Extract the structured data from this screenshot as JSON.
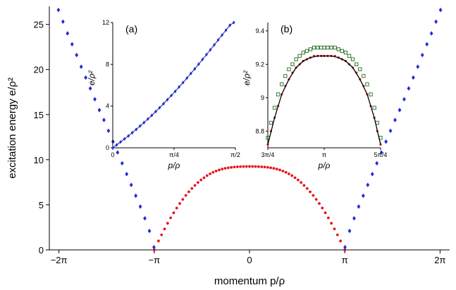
{
  "chart_data": [
    {
      "id": "main",
      "type": "scatter",
      "xlabel": "momentum p/ρ",
      "ylabel": "excitation energy e/ρ²",
      "xlim": [
        -6.6,
        6.6
      ],
      "ylim": [
        0,
        27
      ],
      "xticks": [
        {
          "value": -6.2832,
          "label": "−2π"
        },
        {
          "value": -3.1416,
          "label": "−π"
        },
        {
          "value": 0,
          "label": "0"
        },
        {
          "value": 3.1416,
          "label": "π"
        },
        {
          "value": 6.2832,
          "label": "2π"
        }
      ],
      "yticks": [
        {
          "value": 0,
          "label": "0"
        },
        {
          "value": 5,
          "label": "5"
        },
        {
          "value": 10,
          "label": "10"
        },
        {
          "value": 15,
          "label": "15"
        },
        {
          "value": 20,
          "label": "20"
        },
        {
          "value": 25,
          "label": "25"
        }
      ],
      "grid": false,
      "series": [
        {
          "marker": "diamond",
          "color": "#1f2bd9",
          "description": "outer branches |p| from π to 2π",
          "x": [
            -6.3,
            -6.15,
            -6.0,
            -5.85,
            -5.7,
            -5.55,
            -5.4,
            -5.25,
            -5.1,
            -4.95,
            -4.8,
            -4.65,
            -4.5,
            -4.35,
            -4.2,
            -4.05,
            -3.9,
            -3.75,
            -3.6,
            -3.45,
            -3.3,
            -3.15,
            3.15,
            3.3,
            3.45,
            3.6,
            3.75,
            3.9,
            4.05,
            4.2,
            4.35,
            4.5,
            4.65,
            4.8,
            4.95,
            5.1,
            5.25,
            5.4,
            5.55,
            5.7,
            5.85,
            6.0,
            6.15,
            6.3
          ],
          "y": [
            26.6,
            25.3,
            24.0,
            22.8,
            21.6,
            20.3,
            19.1,
            17.9,
            16.7,
            15.5,
            14.4,
            13.2,
            12.0,
            10.8,
            9.6,
            8.4,
            7.2,
            6.0,
            4.8,
            3.5,
            2.1,
            0.3,
            0.3,
            2.1,
            3.5,
            4.8,
            6.0,
            7.2,
            8.4,
            9.6,
            10.8,
            12.0,
            13.2,
            14.4,
            15.5,
            16.7,
            17.9,
            19.1,
            20.3,
            21.6,
            22.8,
            24.0,
            25.3,
            26.6
          ]
        },
        {
          "marker": "circle",
          "color": "#e8131b",
          "description": "inner branch |p| < π",
          "x": [
            -3.14,
            -3.0,
            -2.9,
            -2.8,
            -2.7,
            -2.6,
            -2.5,
            -2.4,
            -2.3,
            -2.2,
            -2.1,
            -2.0,
            -1.9,
            -1.8,
            -1.7,
            -1.6,
            -1.5,
            -1.4,
            -1.3,
            -1.2,
            -1.1,
            -1.0,
            -0.9,
            -0.8,
            -0.7,
            -0.6,
            -0.5,
            -0.4,
            -0.3,
            -0.2,
            -0.1,
            0.0,
            0.1,
            0.2,
            0.3,
            0.4,
            0.5,
            0.6,
            0.7,
            0.8,
            0.9,
            1.0,
            1.1,
            1.2,
            1.3,
            1.4,
            1.5,
            1.6,
            1.7,
            1.8,
            1.9,
            2.0,
            2.1,
            2.2,
            2.3,
            2.4,
            2.5,
            2.6,
            2.7,
            2.8,
            2.9,
            3.0,
            3.14
          ],
          "y": [
            0.0,
            0.99,
            1.67,
            2.32,
            2.95,
            3.55,
            4.11,
            4.64,
            5.14,
            5.6,
            6.04,
            6.44,
            6.81,
            7.15,
            7.47,
            7.75,
            8.0,
            8.23,
            8.43,
            8.6,
            8.74,
            8.86,
            8.96,
            9.04,
            9.1,
            9.15,
            9.19,
            9.21,
            9.23,
            9.24,
            9.25,
            9.25,
            9.25,
            9.24,
            9.23,
            9.21,
            9.19,
            9.15,
            9.1,
            9.04,
            8.96,
            8.86,
            8.74,
            8.6,
            8.43,
            8.23,
            8.0,
            7.75,
            7.47,
            7.15,
            6.81,
            6.44,
            6.04,
            5.6,
            5.14,
            4.64,
            4.11,
            3.55,
            2.95,
            2.32,
            1.67,
            0.99,
            0.0
          ]
        },
        {
          "marker": "diamond",
          "color": "#b01050",
          "description": "touch points at p = ±π",
          "x": [
            -3.1416,
            3.1416
          ],
          "y": [
            0,
            0
          ]
        }
      ],
      "annotations": []
    },
    {
      "id": "inset-a",
      "panel_label": "(a)",
      "type": "scatter",
      "xlabel": "p/ρ",
      "ylabel": "e/ρ²",
      "xlim": [
        0,
        1.5708
      ],
      "ylim": [
        0,
        12
      ],
      "xticks": [
        {
          "value": 0,
          "label": "0"
        },
        {
          "value": 0.7854,
          "label": "π/4"
        },
        {
          "value": 1.5708,
          "label": "π/2"
        }
      ],
      "yticks": [
        {
          "value": 0,
          "label": "0"
        },
        {
          "value": 4,
          "label": "4"
        },
        {
          "value": 8,
          "label": "8"
        },
        {
          "value": 12,
          "label": "12"
        }
      ],
      "series": [
        {
          "marker": "diamond",
          "color": "#1f2bd9",
          "line_color": "#1a1a8c",
          "x": [
            0.0,
            0.05,
            0.1,
            0.15,
            0.2,
            0.25,
            0.3,
            0.35,
            0.4,
            0.45,
            0.5,
            0.55,
            0.6,
            0.65,
            0.7,
            0.75,
            0.8,
            0.85,
            0.9,
            0.95,
            1.0,
            1.05,
            1.1,
            1.15,
            1.2,
            1.25,
            1.3,
            1.35,
            1.4,
            1.45,
            1.5,
            1.55
          ],
          "y": [
            0.0,
            0.28,
            0.56,
            0.85,
            1.14,
            1.45,
            1.76,
            2.09,
            2.42,
            2.76,
            3.11,
            3.47,
            3.84,
            4.22,
            4.61,
            5.01,
            5.41,
            5.83,
            6.25,
            6.68,
            7.12,
            7.56,
            8.01,
            8.47,
            8.93,
            9.39,
            9.86,
            10.33,
            10.8,
            11.27,
            11.74,
            12.0
          ]
        }
      ]
    },
    {
      "id": "inset-b",
      "panel_label": "(b)",
      "type": "scatter",
      "xlabel": "p/ρ",
      "ylabel": "e/ρ²",
      "xlim": [
        2.3562,
        3.927
      ],
      "ylim": [
        8.7,
        9.45
      ],
      "xticks": [
        {
          "value": 2.3562,
          "label": "3π/4"
        },
        {
          "value": 3.1416,
          "label": "π"
        },
        {
          "value": 3.927,
          "label": "5π/4"
        }
      ],
      "yticks": [
        {
          "value": 8.8,
          "label": "8.8"
        },
        {
          "value": 9,
          "label": "9"
        },
        {
          "value": 9.2,
          "label": "9.2"
        },
        {
          "value": 9.4,
          "label": "9.4"
        }
      ],
      "series": [
        {
          "marker": "open-square",
          "color": "#1f6b1f",
          "x": [
            2.3562,
            2.4,
            2.45,
            2.5,
            2.55,
            2.6,
            2.65,
            2.7,
            2.75,
            2.8,
            2.85,
            2.9,
            2.95,
            3.0,
            3.05,
            3.1,
            3.1416,
            3.19,
            3.24,
            3.29,
            3.34,
            3.39,
            3.44,
            3.49,
            3.54,
            3.59,
            3.64,
            3.69,
            3.74,
            3.79,
            3.84,
            3.88,
            3.927
          ],
          "y": [
            8.76,
            8.85,
            8.94,
            9.02,
            9.08,
            9.13,
            9.17,
            9.2,
            9.23,
            9.25,
            9.27,
            9.28,
            9.29,
            9.3,
            9.3,
            9.3,
            9.3,
            9.3,
            9.3,
            9.3,
            9.29,
            9.28,
            9.27,
            9.25,
            9.23,
            9.2,
            9.17,
            9.13,
            9.08,
            9.02,
            8.94,
            8.85,
            8.76
          ]
        },
        {
          "marker": "circle",
          "color": "#d01020",
          "x": [
            2.3562,
            2.4,
            2.45,
            2.5,
            2.55,
            2.6,
            2.65,
            2.7,
            2.75,
            2.8,
            2.85,
            2.9,
            2.95,
            3.0,
            3.05,
            3.1,
            3.1416,
            3.19,
            3.24,
            3.29,
            3.34,
            3.39,
            3.44,
            3.49,
            3.54,
            3.59,
            3.64,
            3.69,
            3.74,
            3.79,
            3.84,
            3.88,
            3.927
          ],
          "y": [
            8.72,
            8.8,
            8.88,
            8.95,
            9.02,
            9.07,
            9.11,
            9.15,
            9.18,
            9.2,
            9.22,
            9.23,
            9.24,
            9.25,
            9.25,
            9.25,
            9.25,
            9.25,
            9.25,
            9.25,
            9.24,
            9.23,
            9.22,
            9.2,
            9.18,
            9.15,
            9.11,
            9.07,
            9.02,
            8.95,
            8.88,
            8.8,
            8.72
          ]
        },
        {
          "marker": "line",
          "color": "#000000",
          "x": [
            2.3562,
            2.45,
            2.55,
            2.65,
            2.75,
            2.85,
            2.95,
            3.05,
            3.1416,
            3.24,
            3.34,
            3.44,
            3.54,
            3.64,
            3.74,
            3.84,
            3.927
          ],
          "y": [
            8.72,
            8.88,
            9.02,
            9.11,
            9.18,
            9.22,
            9.24,
            9.25,
            9.25,
            9.25,
            9.24,
            9.22,
            9.18,
            9.11,
            9.02,
            8.88,
            8.72
          ]
        }
      ]
    }
  ]
}
